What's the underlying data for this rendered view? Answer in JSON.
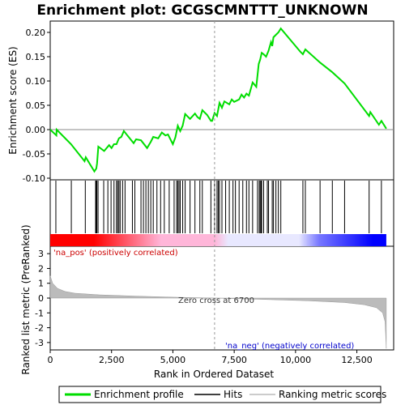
{
  "chart_data": {
    "type": "line",
    "title": "Enrichment plot: GCGSCMNTTT_UNKNOWN",
    "top_panel": {
      "ylabel": "Enrichment score (ES)",
      "ylim": [
        -0.1,
        0.22
      ],
      "yticks": [
        {
          "value": -0.1,
          "label": "-0.10"
        },
        {
          "value": -0.05,
          "label": "-0.05"
        },
        {
          "value": 0.0,
          "label": "0.00"
        },
        {
          "value": 0.05,
          "label": "0.05"
        },
        {
          "value": 0.1,
          "label": "0.10"
        },
        {
          "value": 0.15,
          "label": "0.15"
        },
        {
          "value": 0.2,
          "label": "0.20"
        }
      ],
      "series": [
        {
          "name": "Enrichment profile",
          "color": "#00dd00",
          "points": [
            [
              0,
              0.0
            ],
            [
              250,
              -0.012
            ],
            [
              260,
              0.0
            ],
            [
              850,
              -0.03
            ],
            [
              1400,
              -0.065
            ],
            [
              1450,
              -0.057
            ],
            [
              1800,
              -0.086
            ],
            [
              1880,
              -0.08
            ],
            [
              1910,
              -0.07
            ],
            [
              1960,
              -0.035
            ],
            [
              2200,
              -0.044
            ],
            [
              2400,
              -0.032
            ],
            [
              2500,
              -0.038
            ],
            [
              2600,
              -0.03
            ],
            [
              2700,
              -0.03
            ],
            [
              2800,
              -0.018
            ],
            [
              2900,
              -0.015
            ],
            [
              3000,
              -0.003
            ],
            [
              3400,
              -0.028
            ],
            [
              3500,
              -0.02
            ],
            [
              3700,
              -0.022
            ],
            [
              3950,
              -0.038
            ],
            [
              4100,
              -0.025
            ],
            [
              4200,
              -0.015
            ],
            [
              4400,
              -0.018
            ],
            [
              4550,
              -0.006
            ],
            [
              4700,
              -0.012
            ],
            [
              4800,
              -0.01
            ],
            [
              5000,
              -0.03
            ],
            [
              5100,
              -0.016
            ],
            [
              5200,
              0.008
            ],
            [
              5300,
              -0.003
            ],
            [
              5400,
              0.008
            ],
            [
              5500,
              0.032
            ],
            [
              5700,
              0.022
            ],
            [
              5900,
              0.033
            ],
            [
              6000,
              0.026
            ],
            [
              6100,
              0.022
            ],
            [
              6200,
              0.04
            ],
            [
              6400,
              0.03
            ],
            [
              6550,
              0.018
            ],
            [
              6600,
              0.018
            ],
            [
              6700,
              0.034
            ],
            [
              6800,
              0.028
            ],
            [
              6900,
              0.055
            ],
            [
              7000,
              0.045
            ],
            [
              7100,
              0.058
            ],
            [
              7300,
              0.052
            ],
            [
              7400,
              0.062
            ],
            [
              7500,
              0.057
            ],
            [
              7700,
              0.062
            ],
            [
              7800,
              0.072
            ],
            [
              7900,
              0.066
            ],
            [
              8000,
              0.074
            ],
            [
              8100,
              0.07
            ],
            [
              8250,
              0.097
            ],
            [
              8400,
              0.088
            ],
            [
              8500,
              0.135
            ],
            [
              8560,
              0.144
            ],
            [
              8620,
              0.158
            ],
            [
              8700,
              0.155
            ],
            [
              8800,
              0.15
            ],
            [
              8900,
              0.162
            ],
            [
              9000,
              0.18
            ],
            [
              9050,
              0.172
            ],
            [
              9100,
              0.19
            ],
            [
              9200,
              0.195
            ],
            [
              9300,
              0.2
            ],
            [
              9400,
              0.208
            ],
            [
              10200,
              0.16
            ],
            [
              10300,
              0.155
            ],
            [
              10400,
              0.165
            ],
            [
              11000,
              0.138
            ],
            [
              11500,
              0.118
            ],
            [
              12000,
              0.095
            ],
            [
              13000,
              0.028
            ],
            [
              13050,
              0.036
            ],
            [
              13400,
              0.01
            ],
            [
              13500,
              0.018
            ],
            [
              13700,
              0.002
            ]
          ]
        }
      ]
    },
    "hits_panel": {
      "hits_label": "Hits",
      "hit_positions": [
        230,
        860,
        1430,
        1850,
        1870,
        1900,
        1950,
        2180,
        2350,
        2480,
        2600,
        2700,
        2750,
        2800,
        2850,
        2950,
        3050,
        3350,
        3450,
        3700,
        3800,
        3900,
        4000,
        4100,
        4200,
        4350,
        4500,
        4650,
        4850,
        5050,
        5150,
        5200,
        5250,
        5300,
        5400,
        5500,
        5700,
        5900,
        6100,
        6200,
        6550,
        6700,
        6800,
        6850,
        6900,
        7000,
        7150,
        7300,
        7450,
        7550,
        7700,
        7850,
        8000,
        8100,
        8250,
        8450,
        8520,
        8560,
        8600,
        8620,
        8700,
        8850,
        8900,
        9050,
        9100,
        9200,
        9300,
        9400,
        10300,
        10400,
        11000,
        11500,
        12000,
        13000,
        13500
      ],
      "gradient_colors": [
        "#ff0000",
        "#ffb6d9",
        "#e8e8ff",
        "#0000ff"
      ]
    },
    "metric_panel": {
      "ylabel": "Ranked list metric (PreRanked)",
      "xlabel": "Rank in Ordered Dataset",
      "ylim": [
        -3.5,
        3.5
      ],
      "yticks": [
        {
          "value": 3,
          "label": "3"
        },
        {
          "value": 2,
          "label": "2"
        },
        {
          "value": 1,
          "label": "1"
        },
        {
          "value": 0,
          "label": "0"
        },
        {
          "value": -1,
          "label": "-1"
        },
        {
          "value": -2,
          "label": "-2"
        },
        {
          "value": -3,
          "label": "-3"
        }
      ],
      "metric_points": [
        [
          0,
          1.5
        ],
        [
          100,
          1.0
        ],
        [
          300,
          0.65
        ],
        [
          600,
          0.45
        ],
        [
          1000,
          0.33
        ],
        [
          2000,
          0.22
        ],
        [
          3500,
          0.13
        ],
        [
          5000,
          0.06
        ],
        [
          6700,
          0.0
        ],
        [
          8500,
          -0.08
        ],
        [
          10500,
          -0.18
        ],
        [
          12000,
          -0.3
        ],
        [
          12800,
          -0.45
        ],
        [
          13300,
          -0.65
        ],
        [
          13550,
          -1.0
        ],
        [
          13650,
          -1.6
        ],
        [
          13700,
          -3.4
        ]
      ],
      "zero_cross_rank": 6700,
      "zero_cross_label": "Zero cross at 6700",
      "pos_label": "'na_pos' (positively correlated)",
      "neg_label": "'na_neg' (negatively correlated)"
    },
    "x_axis": {
      "xlim": [
        0,
        14000
      ],
      "max_rank": 13700,
      "ticks": [
        {
          "value": 0,
          "label": "0"
        },
        {
          "value": 2500,
          "label": "2,500"
        },
        {
          "value": 5000,
          "label": "5,000"
        },
        {
          "value": 7500,
          "label": "7,500"
        },
        {
          "value": 10000,
          "label": "10,000"
        },
        {
          "value": 12500,
          "label": "12,500"
        }
      ]
    },
    "legend": {
      "position": "bottom",
      "entries": [
        {
          "label": "Enrichment profile",
          "color": "#00dd00"
        },
        {
          "label": "Hits",
          "color": "#000000"
        },
        {
          "label": "Ranking metric scores",
          "color": "#bbbbbb"
        }
      ]
    }
  }
}
